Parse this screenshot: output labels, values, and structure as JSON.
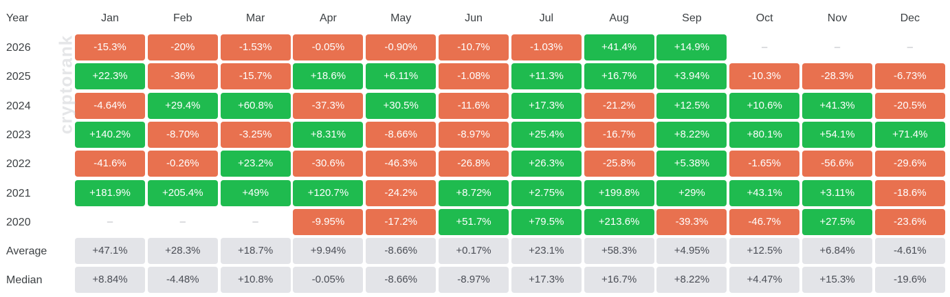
{
  "watermark": "cryptorank",
  "header": {
    "year_label": "Year",
    "months": [
      "Jan",
      "Feb",
      "Mar",
      "Apr",
      "May",
      "Jun",
      "Jul",
      "Aug",
      "Sep",
      "Oct",
      "Nov",
      "Dec"
    ]
  },
  "colors": {
    "positive": "#1fbb4f",
    "negative": "#e8714f",
    "stat_bg": "#e3e4e8"
  },
  "rows": [
    {
      "label": "2026",
      "cells": [
        "-15.3%",
        "-20%",
        "-1.53%",
        "-0.05%",
        "-0.90%",
        "-10.7%",
        "-1.03%",
        "+41.4%",
        "+14.9%",
        "–",
        "–",
        "–"
      ]
    },
    {
      "label": "2025",
      "cells": [
        "+22.3%",
        "-36%",
        "-15.7%",
        "+18.6%",
        "+6.11%",
        "-1.08%",
        "+11.3%",
        "+16.7%",
        "+3.94%",
        "-10.3%",
        "-28.3%",
        "-6.73%"
      ]
    },
    {
      "label": "2024",
      "cells": [
        "-4.64%",
        "+29.4%",
        "+60.8%",
        "-37.3%",
        "+30.5%",
        "-11.6%",
        "+17.3%",
        "-21.2%",
        "+12.5%",
        "+10.6%",
        "+41.3%",
        "-20.5%"
      ]
    },
    {
      "label": "2023",
      "cells": [
        "+140.2%",
        "-8.70%",
        "-3.25%",
        "+8.31%",
        "-8.66%",
        "-8.97%",
        "+25.4%",
        "-16.7%",
        "+8.22%",
        "+80.1%",
        "+54.1%",
        "+71.4%"
      ]
    },
    {
      "label": "2022",
      "cells": [
        "-41.6%",
        "-0.26%",
        "+23.2%",
        "-30.6%",
        "-46.3%",
        "-26.8%",
        "+26.3%",
        "-25.8%",
        "+5.38%",
        "-1.65%",
        "-56.6%",
        "-29.6%"
      ]
    },
    {
      "label": "2021",
      "cells": [
        "+181.9%",
        "+205.4%",
        "+49%",
        "+120.7%",
        "-24.2%",
        "+8.72%",
        "+2.75%",
        "+199.8%",
        "+29%",
        "+43.1%",
        "+3.11%",
        "-18.6%"
      ]
    },
    {
      "label": "2020",
      "cells": [
        "–",
        "–",
        "–",
        "-9.95%",
        "-17.2%",
        "+51.7%",
        "+79.5%",
        "+213.6%",
        "-39.3%",
        "-46.7%",
        "+27.5%",
        "-23.6%"
      ]
    }
  ],
  "stats": [
    {
      "label": "Average",
      "cells": [
        "+47.1%",
        "+28.3%",
        "+18.7%",
        "+9.94%",
        "-8.66%",
        "+0.17%",
        "+23.1%",
        "+58.3%",
        "+4.95%",
        "+12.5%",
        "+6.84%",
        "-4.61%"
      ]
    },
    {
      "label": "Median",
      "cells": [
        "+8.84%",
        "-4.48%",
        "+10.8%",
        "-0.05%",
        "-8.66%",
        "-8.97%",
        "+17.3%",
        "+16.7%",
        "+8.22%",
        "+4.47%",
        "+15.3%",
        "-19.6%"
      ]
    }
  ]
}
